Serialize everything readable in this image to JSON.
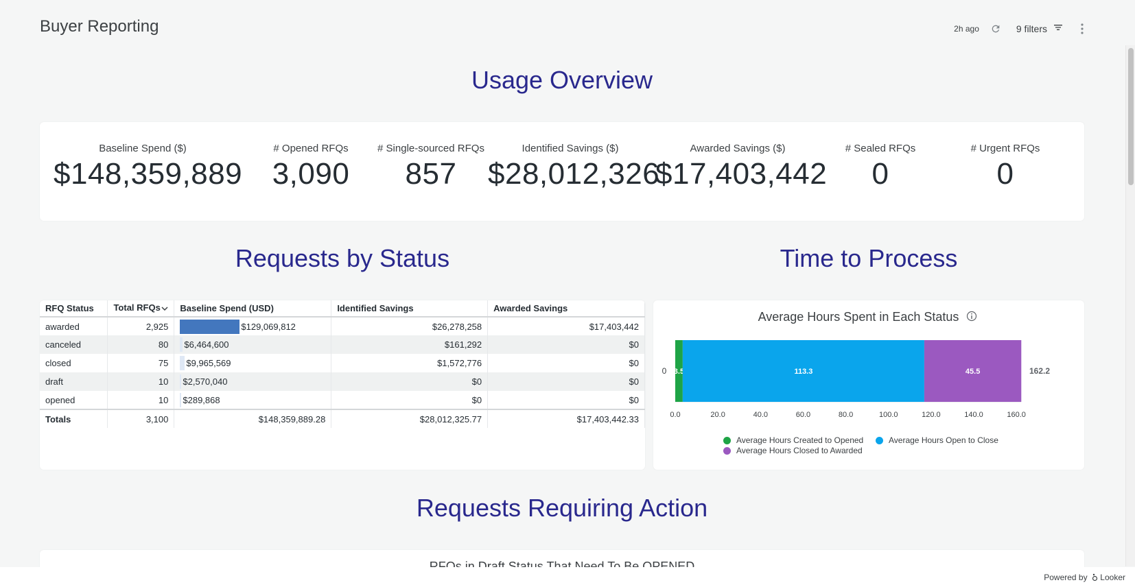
{
  "header": {
    "title": "Buyer Reporting",
    "last_updated": "2h ago",
    "filters_label": "9 filters"
  },
  "sections": {
    "usage": "Usage Overview",
    "status": "Requests by Status",
    "time": "Time to Process",
    "action": "Requests Requiring Action"
  },
  "kpis": [
    {
      "label": "Baseline Spend ($)",
      "value": "$148,359,889"
    },
    {
      "label": "# Opened RFQs",
      "value": "3,090"
    },
    {
      "label": "# Single-sourced RFQs",
      "value": "857"
    },
    {
      "label": "Identified Savings ($)",
      "value": "$28,012,326"
    },
    {
      "label": "Awarded Savings ($)",
      "value": "$17,403,442"
    },
    {
      "label": "# Sealed RFQs",
      "value": "0"
    },
    {
      "label": "# Urgent RFQs",
      "value": "0"
    }
  ],
  "status_table": {
    "columns": [
      "RFQ Status",
      "Total RFQs",
      "Baseline Spend (USD)",
      "Identified Savings",
      "Awarded Savings"
    ],
    "rows": [
      {
        "status": "awarded",
        "total": "2,925",
        "baseline": "$129,069,812",
        "baseline_fraction": 0.87,
        "identified": "$26,278,258",
        "awarded": "$17,403,442"
      },
      {
        "status": "canceled",
        "total": "80",
        "baseline": "$6,464,600",
        "baseline_fraction": 0.044,
        "identified": "$161,292",
        "awarded": "$0"
      },
      {
        "status": "closed",
        "total": "75",
        "baseline": "$9,965,569",
        "baseline_fraction": 0.067,
        "identified": "$1,572,776",
        "awarded": "$0"
      },
      {
        "status": "draft",
        "total": "10",
        "baseline": "$2,570,040",
        "baseline_fraction": 0.017,
        "identified": "$0",
        "awarded": "$0"
      },
      {
        "status": "opened",
        "total": "10",
        "baseline": "$289,868",
        "baseline_fraction": 0.002,
        "identified": "$0",
        "awarded": "$0"
      }
    ],
    "totals": {
      "label": "Totals",
      "total": "3,100",
      "baseline": "$148,359,889.28",
      "identified": "$28,012,325.77",
      "awarded": "$17,403,442.33"
    }
  },
  "chart_data": {
    "type": "bar",
    "orientation": "horizontal",
    "stacked": true,
    "title": "Average Hours Spent in Each Status",
    "categories": [
      "0"
    ],
    "series": [
      {
        "name": "Average Hours Created to Opened",
        "values": [
          3.5
        ],
        "color": "#1ea446"
      },
      {
        "name": "Average Hours Open to Close",
        "values": [
          113.3
        ],
        "color": "#0aa5ec"
      },
      {
        "name": "Average Hours Closed to Awarded",
        "values": [
          45.5
        ],
        "color": "#9b59c0"
      }
    ],
    "total_label": "162.2",
    "xticks": [
      "0.0",
      "20.0",
      "40.0",
      "60.0",
      "80.0",
      "100.0",
      "120.0",
      "140.0",
      "160.0"
    ],
    "xlim": [
      0,
      162.2
    ],
    "legend_position": "bottom",
    "grid": false
  },
  "bottom_card": {
    "title": "RFQs in Draft Status That Need To Be OPENED"
  },
  "footer": {
    "powered_by": "Powered by",
    "brand": "Looker"
  }
}
